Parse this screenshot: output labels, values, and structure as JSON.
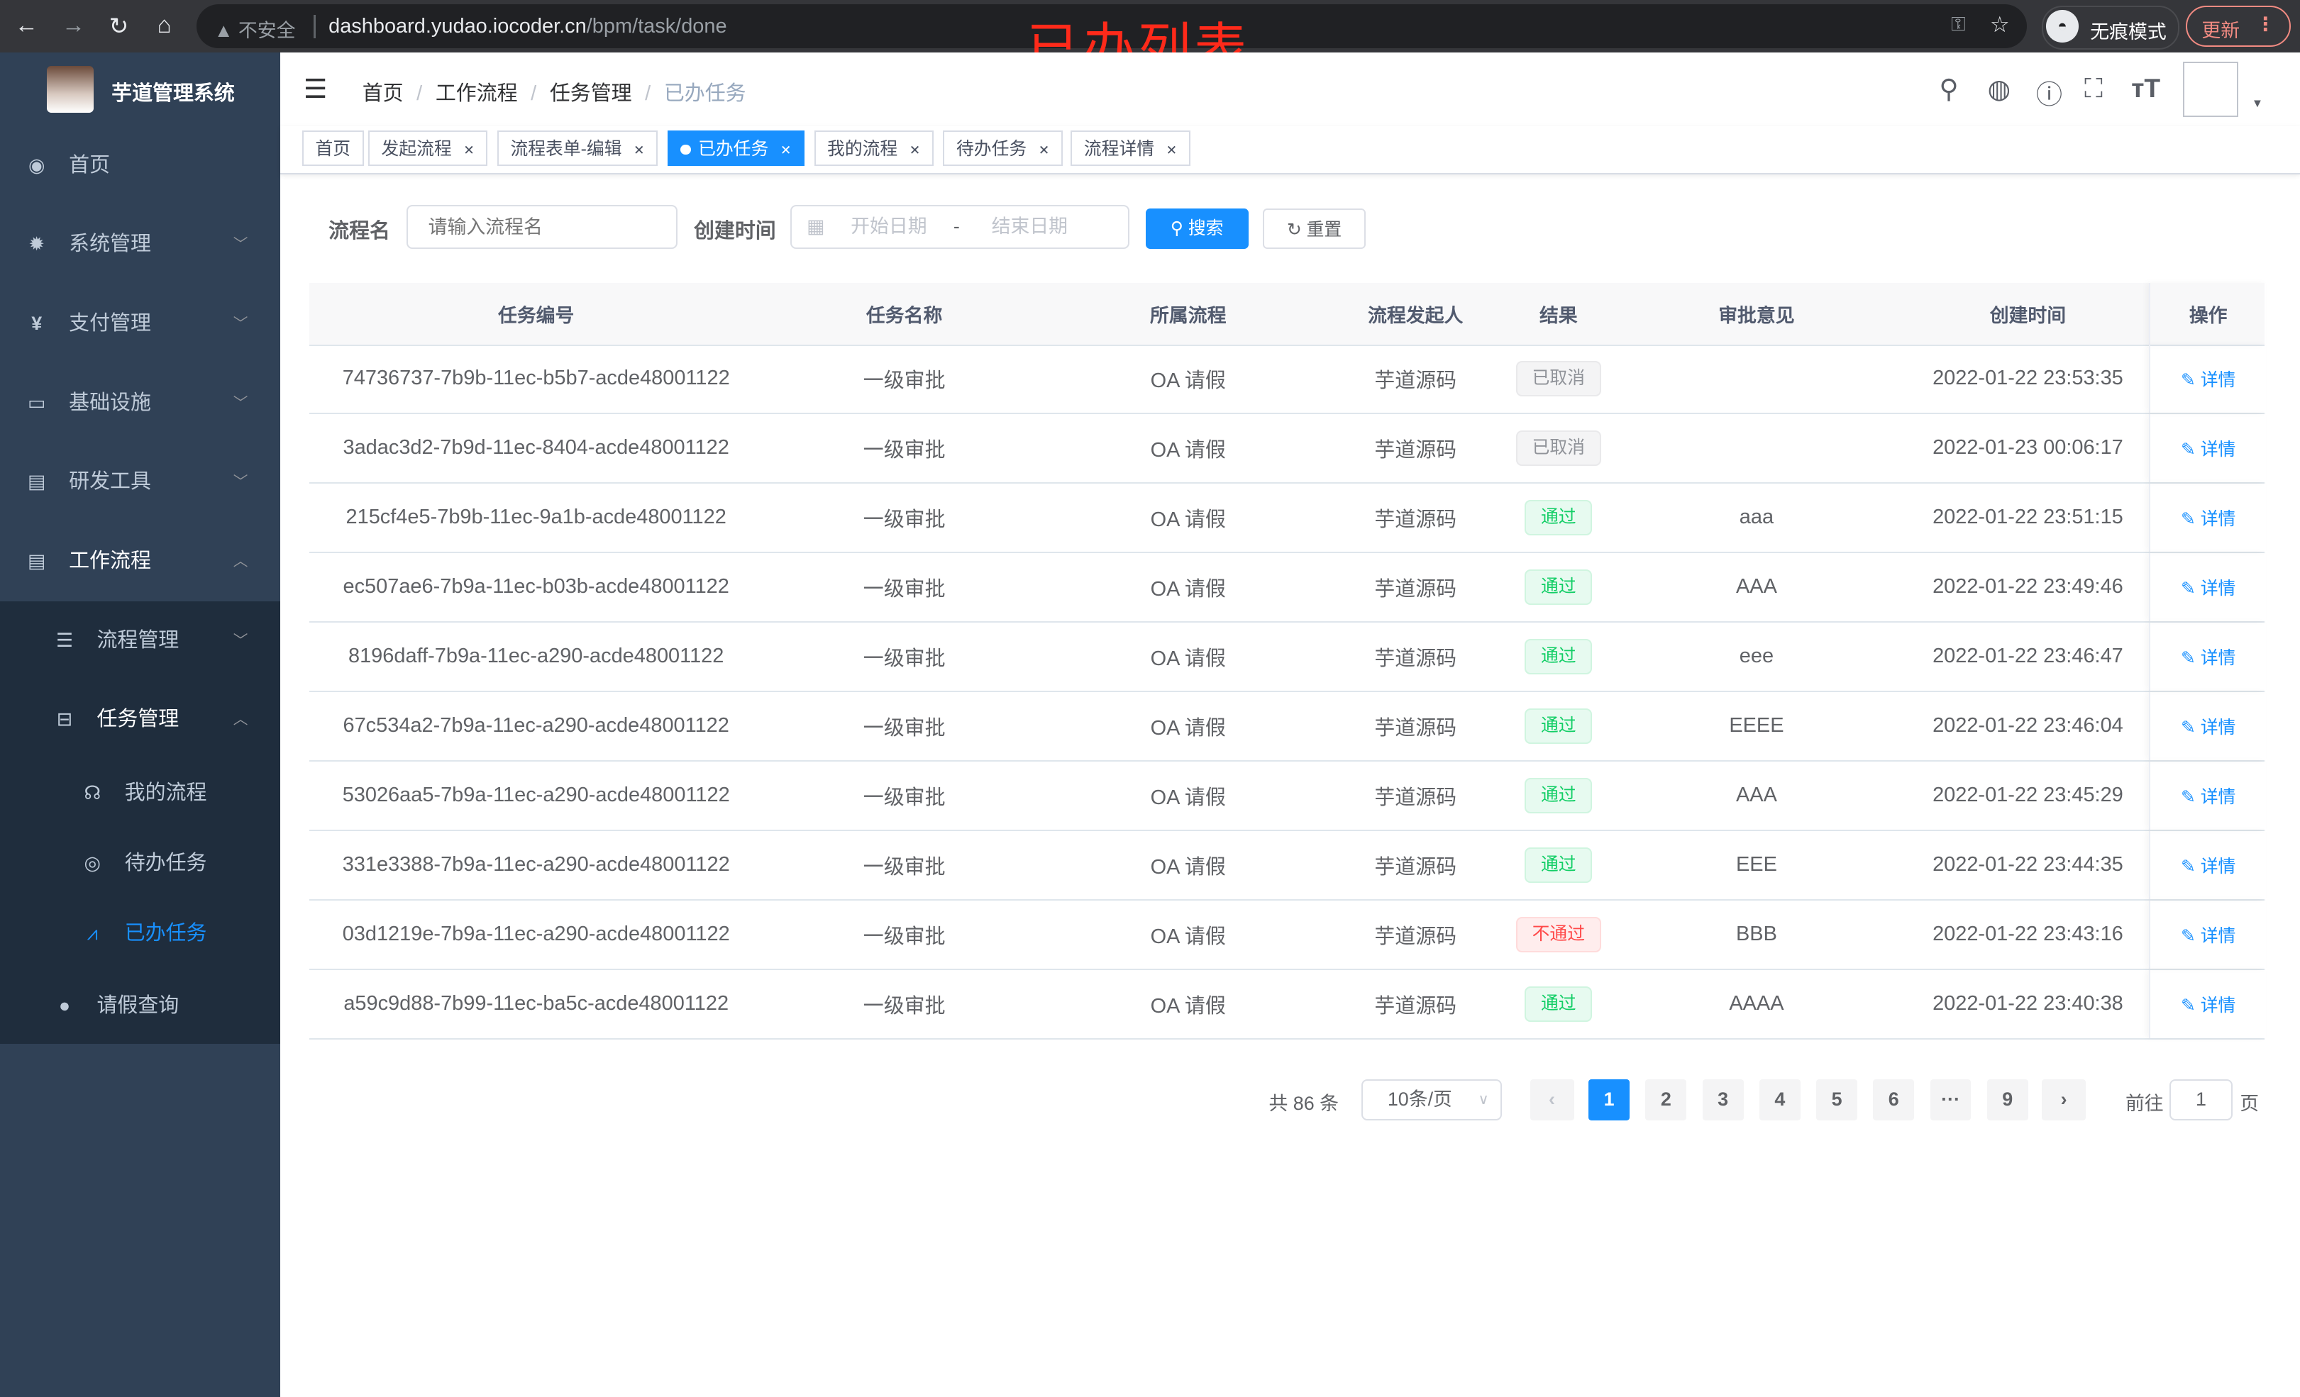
{
  "browser": {
    "back_icon": "arrow-left",
    "forward_icon": "arrow-right",
    "reload_icon": "reload",
    "home_icon": "home",
    "insecure_label": "不安全",
    "url_host": "dashboard.yudao.iocoder.cn",
    "url_path": "/bpm/task/done",
    "incognito_label": "无痕模式",
    "update_label": "更新"
  },
  "annotation": "已办列表",
  "sidebar": {
    "title": "芋道管理系统",
    "items": [
      {
        "label": "首页",
        "icon": "dashboard"
      },
      {
        "label": "系统管理",
        "icon": "gear"
      },
      {
        "label": "支付管理",
        "icon": "yen"
      },
      {
        "label": "基础设施",
        "icon": "monitor"
      },
      {
        "label": "研发工具",
        "icon": "toolbox"
      },
      {
        "label": "工作流程",
        "icon": "toolbox"
      }
    ],
    "sub_items": [
      {
        "label": "流程管理",
        "icon": "list"
      },
      {
        "label": "任务管理",
        "icon": "tree"
      },
      {
        "label": "我的流程",
        "icon": "headset"
      },
      {
        "label": "待办任务",
        "icon": "eye"
      },
      {
        "label": "已办任务",
        "icon": "done"
      },
      {
        "label": "请假查询",
        "icon": "user"
      }
    ]
  },
  "navbar": {
    "breadcrumb": [
      "首页",
      "工作流程",
      "任务管理",
      "已办任务"
    ]
  },
  "tags": [
    {
      "label": "首页",
      "closable": false,
      "active": false
    },
    {
      "label": "发起流程",
      "closable": true,
      "active": false
    },
    {
      "label": "流程表单-编辑",
      "closable": true,
      "active": false
    },
    {
      "label": "已办任务",
      "closable": true,
      "active": true
    },
    {
      "label": "我的流程",
      "closable": true,
      "active": false
    },
    {
      "label": "待办任务",
      "closable": true,
      "active": false
    },
    {
      "label": "流程详情",
      "closable": true,
      "active": false
    }
  ],
  "search": {
    "name_label": "流程名",
    "name_placeholder": "请输入流程名",
    "time_label": "创建时间",
    "start_placeholder": "开始日期",
    "range_sep": "-",
    "end_placeholder": "结束日期",
    "search_label": "搜索",
    "reset_label": "重置"
  },
  "table": {
    "columns": [
      "任务编号",
      "任务名称",
      "所属流程",
      "流程发起人",
      "结果",
      "审批意见",
      "创建时间",
      "操作"
    ],
    "action_label": "详情",
    "rows": [
      {
        "id": "74736737-7b9b-11ec-b5b7-acde48001122",
        "name": "一级审批",
        "flow": "OA 请假",
        "initiator": "芋道源码",
        "result": "已取消",
        "status": "cancel",
        "comment": "",
        "time": "2022-01-22 23:53:35"
      },
      {
        "id": "3adac3d2-7b9d-11ec-8404-acde48001122",
        "name": "一级审批",
        "flow": "OA 请假",
        "initiator": "芋道源码",
        "result": "已取消",
        "status": "cancel",
        "comment": "",
        "time": "2022-01-23 00:06:17"
      },
      {
        "id": "215cf4e5-7b9b-11ec-9a1b-acde48001122",
        "name": "一级审批",
        "flow": "OA 请假",
        "initiator": "芋道源码",
        "result": "通过",
        "status": "pass",
        "comment": "aaa",
        "time": "2022-01-22 23:51:15"
      },
      {
        "id": "ec507ae6-7b9a-11ec-b03b-acde48001122",
        "name": "一级审批",
        "flow": "OA 请假",
        "initiator": "芋道源码",
        "result": "通过",
        "status": "pass",
        "comment": "AAA",
        "time": "2022-01-22 23:49:46"
      },
      {
        "id": "8196daff-7b9a-11ec-a290-acde48001122",
        "name": "一级审批",
        "flow": "OA 请假",
        "initiator": "芋道源码",
        "result": "通过",
        "status": "pass",
        "comment": "eee",
        "time": "2022-01-22 23:46:47"
      },
      {
        "id": "67c534a2-7b9a-11ec-a290-acde48001122",
        "name": "一级审批",
        "flow": "OA 请假",
        "initiator": "芋道源码",
        "result": "通过",
        "status": "pass",
        "comment": "EEEE",
        "time": "2022-01-22 23:46:04"
      },
      {
        "id": "53026aa5-7b9a-11ec-a290-acde48001122",
        "name": "一级审批",
        "flow": "OA 请假",
        "initiator": "芋道源码",
        "result": "通过",
        "status": "pass",
        "comment": "AAA",
        "time": "2022-01-22 23:45:29"
      },
      {
        "id": "331e3388-7b9a-11ec-a290-acde48001122",
        "name": "一级审批",
        "flow": "OA 请假",
        "initiator": "芋道源码",
        "result": "通过",
        "status": "pass",
        "comment": "EEE",
        "time": "2022-01-22 23:44:35"
      },
      {
        "id": "03d1219e-7b9a-11ec-a290-acde48001122",
        "name": "一级审批",
        "flow": "OA 请假",
        "initiator": "芋道源码",
        "result": "不通过",
        "status": "reject",
        "comment": "BBB",
        "time": "2022-01-22 23:43:16"
      },
      {
        "id": "a59c9d88-7b99-11ec-ba5c-acde48001122",
        "name": "一级审批",
        "flow": "OA 请假",
        "initiator": "芋道源码",
        "result": "通过",
        "status": "pass",
        "comment": "AAAA",
        "time": "2022-01-22 23:40:38"
      }
    ]
  },
  "pagination": {
    "total_label": "共 86 条",
    "page_size": "10条/页",
    "pages": [
      "1",
      "2",
      "3",
      "4",
      "5",
      "6",
      "···",
      "9"
    ],
    "current": "1",
    "goto_prefix": "前往",
    "goto_value": "1",
    "goto_suffix": "页"
  },
  "colors": {
    "primary": "#1890ff",
    "sidebar": "#304156",
    "submenu": "#1f2d3d",
    "success": "#13ce66",
    "danger": "#ff4949",
    "annotation": "#ff2a1a"
  }
}
